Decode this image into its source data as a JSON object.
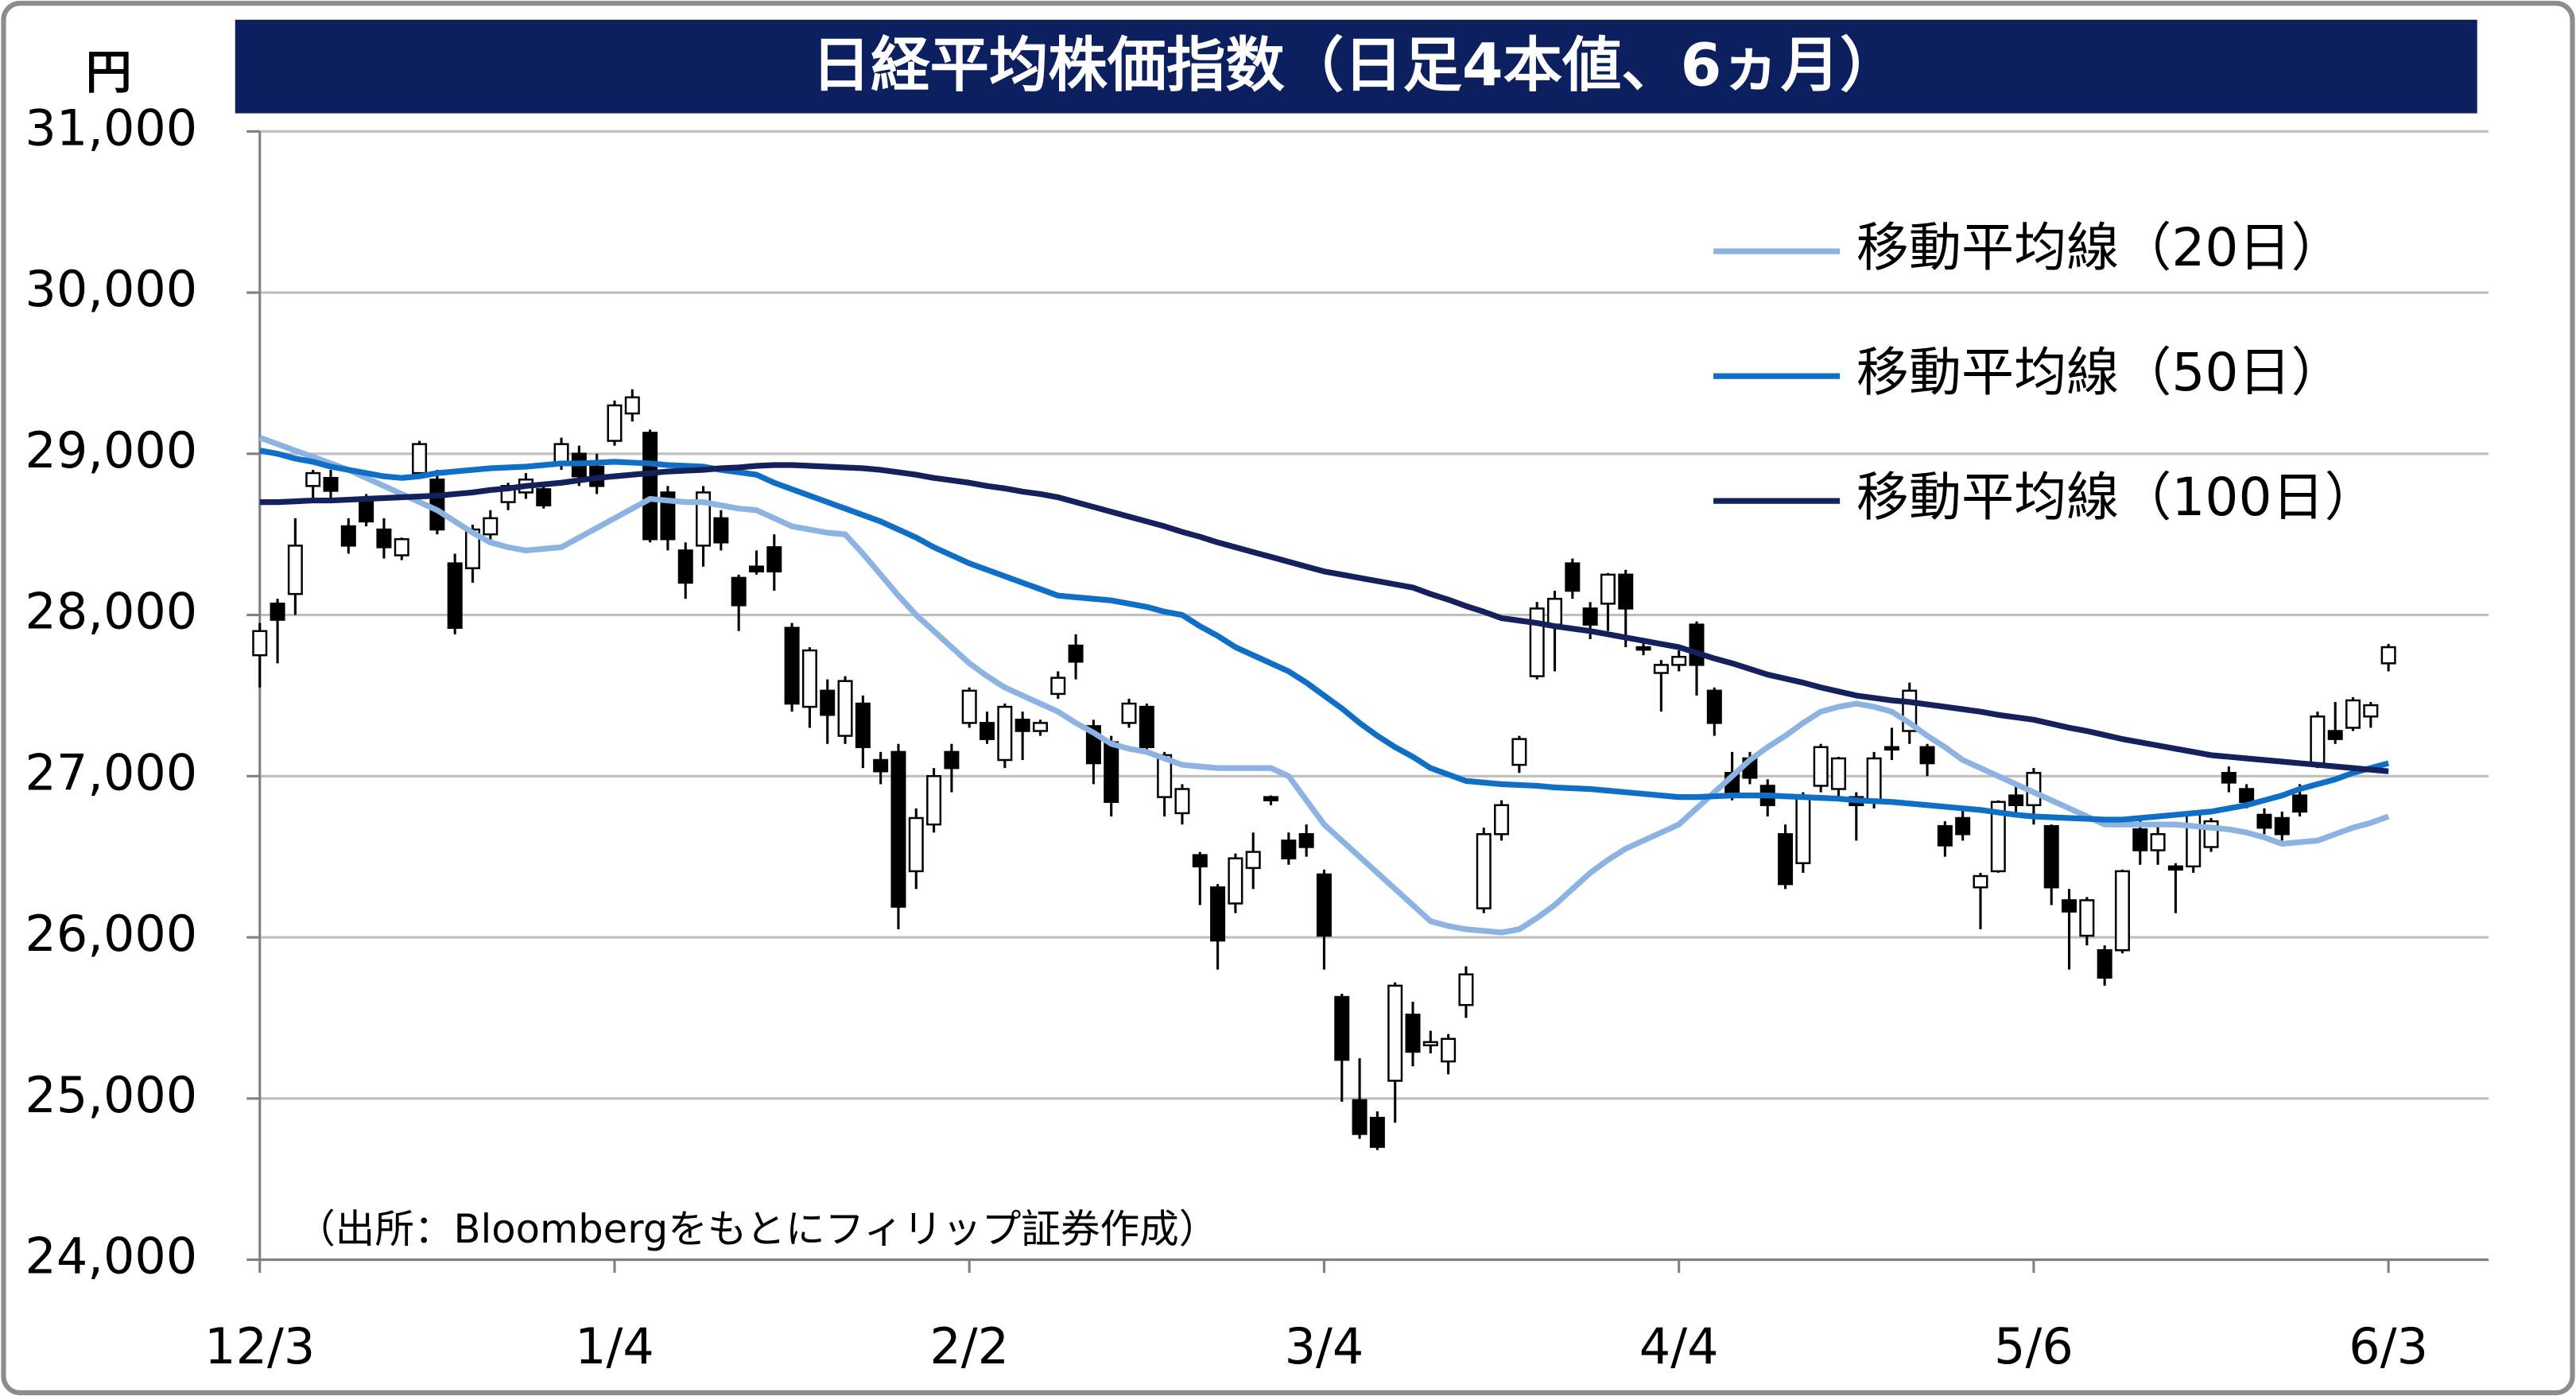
{
  "chart_data": {
    "type": "candlestick",
    "title": "日経平均株価指数（日足4本値、6ヵ月）",
    "unit_label": "円",
    "note": "（出所：Bloombergをもとにフィリップ証券作成）",
    "categories": [
      "12/3",
      null,
      null,
      null,
      null,
      null,
      null,
      null,
      null,
      null,
      null,
      null,
      null,
      null,
      null,
      null,
      null,
      null,
      null,
      null,
      "1/4",
      null,
      null,
      null,
      null,
      null,
      null,
      null,
      null,
      null,
      null,
      null,
      null,
      null,
      null,
      null,
      null,
      null,
      null,
      null,
      "2/2",
      null,
      null,
      null,
      null,
      null,
      null,
      null,
      null,
      null,
      null,
      null,
      null,
      null,
      null,
      null,
      null,
      null,
      null,
      null,
      "3/4",
      null,
      null,
      null,
      null,
      null,
      null,
      null,
      null,
      null,
      null,
      null,
      null,
      null,
      null,
      null,
      null,
      null,
      null,
      null,
      "4/4",
      null,
      null,
      null,
      null,
      null,
      null,
      null,
      null,
      null,
      null,
      null,
      null,
      null,
      null,
      null,
      null,
      null,
      null,
      null,
      "5/6",
      null,
      null,
      null,
      null,
      null,
      null,
      null,
      null,
      null,
      null,
      null,
      null,
      null,
      null,
      null,
      null,
      null,
      null,
      null,
      "6/3"
    ],
    "open": [
      27750,
      28070,
      28130,
      28800,
      28850,
      28550,
      28700,
      28530,
      28370,
      28880,
      28840,
      28320,
      28290,
      28500,
      28700,
      28760,
      28780,
      28940,
      29000,
      28920,
      29080,
      29250,
      29130,
      28760,
      28400,
      28430,
      28600,
      28230,
      28300,
      28420,
      27920,
      27430,
      27530,
      27250,
      27450,
      27100,
      27150,
      26410,
      26700,
      27150,
      27330,
      27330,
      27100,
      27350,
      27280,
      27510,
      27810,
      27310,
      27210,
      27330,
      27430,
      26870,
      26770,
      26510,
      26310,
      26210,
      26430,
      26870,
      26600,
      26640,
      26390,
      25630,
      24990,
      24880,
      25110,
      25520,
      25330,
      25230,
      25580,
      26180,
      26640,
      27070,
      27620,
      27940,
      28320,
      28040,
      28070,
      28250,
      27800,
      27640,
      27690,
      27940,
      27530,
      27020,
      27110,
      26940,
      26640,
      26460,
      26940,
      26920,
      26870,
      26840,
      27180,
      27280,
      27180,
      26690,
      26740,
      26310,
      26410,
      26880,
      26820,
      26690,
      26230,
      26010,
      25920,
      25920,
      26670,
      26540,
      26440,
      26440,
      26560,
      27020,
      26920,
      26760,
      26740,
      26880,
      27080,
      27280,
      27300,
      27370,
      27700
    ],
    "high": [
      27950,
      28100,
      28600,
      28900,
      28900,
      28600,
      28750,
      28600,
      28480,
      29080,
      28900,
      28380,
      28560,
      28650,
      28820,
      28880,
      28820,
      29100,
      29050,
      29000,
      29330,
      29400,
      29150,
      28800,
      28450,
      28800,
      28650,
      28250,
      28400,
      28500,
      27950,
      27800,
      27600,
      27620,
      27500,
      27150,
      27200,
      26800,
      27050,
      27200,
      27550,
      27400,
      27450,
      27400,
      27350,
      27650,
      27880,
      27350,
      27250,
      27480,
      27450,
      27150,
      26950,
      26530,
      26330,
      26520,
      26650,
      26880,
      26650,
      26700,
      26420,
      25650,
      25250,
      24920,
      25720,
      25600,
      25420,
      25400,
      25820,
      26680,
      26850,
      27250,
      28080,
      28150,
      28350,
      28080,
      28260,
      28280,
      27850,
      27720,
      27780,
      27960,
      27550,
      27150,
      27150,
      26980,
      26700,
      26900,
      27200,
      27120,
      26900,
      27150,
      27300,
      27580,
      27200,
      26720,
      26800,
      26400,
      26850,
      26950,
      27050,
      26700,
      26300,
      26250,
      25950,
      26420,
      26750,
      26700,
      26460,
      26780,
      26740,
      27060,
      26950,
      26800,
      26780,
      26950,
      27400,
      27460,
      27490,
      27460,
      27820
    ],
    "low": [
      27550,
      27700,
      28000,
      28700,
      28700,
      28380,
      28550,
      28350,
      28340,
      28850,
      28500,
      27880,
      28200,
      28450,
      28650,
      28720,
      28660,
      28900,
      28800,
      28750,
      29050,
      29200,
      28450,
      28400,
      28100,
      28300,
      28400,
      27900,
      28250,
      28150,
      27400,
      27300,
      27200,
      27200,
      27050,
      26950,
      26050,
      26300,
      26650,
      26900,
      27300,
      27200,
      27050,
      27100,
      27250,
      27480,
      27600,
      26950,
      26750,
      27300,
      27150,
      26750,
      26700,
      26200,
      25800,
      26150,
      26300,
      26820,
      26450,
      26500,
      25800,
      24980,
      24750,
      24680,
      24850,
      25200,
      25280,
      25150,
      25500,
      26150,
      26600,
      27020,
      27600,
      27650,
      28100,
      27850,
      27900,
      27800,
      27750,
      27400,
      27650,
      27500,
      27250,
      26850,
      26950,
      26750,
      26300,
      26400,
      26900,
      26850,
      26600,
      26800,
      27100,
      27200,
      27000,
      26500,
      26600,
      26050,
      26400,
      26750,
      26700,
      26200,
      25800,
      25950,
      25700,
      25900,
      26450,
      26450,
      26150,
      26400,
      26530,
      26900,
      26800,
      26640,
      26600,
      26750,
      27050,
      27200,
      27280,
      27300,
      27650
    ],
    "close": [
      27900,
      27970,
      28430,
      28880,
      28770,
      28430,
      28580,
      28420,
      28470,
      29060,
      28530,
      27920,
      28530,
      28600,
      28800,
      28840,
      28680,
      29060,
      28860,
      28800,
      29300,
      29350,
      28470,
      28470,
      28200,
      28760,
      28450,
      28060,
      28270,
      28270,
      27450,
      27780,
      27380,
      27590,
      27180,
      27030,
      26190,
      26740,
      27000,
      27050,
      27530,
      27230,
      27430,
      27280,
      27330,
      27610,
      27710,
      27080,
      26840,
      27450,
      27180,
      27130,
      26920,
      26440,
      25980,
      26490,
      26530,
      26850,
      26490,
      26560,
      26010,
      25240,
      24780,
      24700,
      25700,
      25290,
      25350,
      25370,
      25770,
      26640,
      26820,
      27230,
      28040,
      28100,
      28150,
      27940,
      28250,
      28040,
      27790,
      27690,
      27740,
      27690,
      27330,
      26870,
      26990,
      26820,
      26330,
      26870,
      27180,
      27110,
      26820,
      27110,
      27170,
      27530,
      27080,
      26570,
      26640,
      26380,
      26840,
      26820,
      27020,
      26310,
      26160,
      26230,
      25750,
      26410,
      26540,
      26640,
      26420,
      26770,
      26720,
      26960,
      26840,
      26680,
      26640,
      26780,
      27370,
      27230,
      27470,
      27440,
      27800
    ],
    "up_color": "#ffffff",
    "down_color": "#000000",
    "series": [
      {
        "name": "移動平均線（20日）",
        "color": "#8db3e2",
        "values": [
          29100,
          29060,
          29020,
          28980,
          28940,
          28900,
          28850,
          28800,
          28750,
          28700,
          28650,
          28580,
          28510,
          28450,
          28420,
          28400,
          28410,
          28420,
          28480,
          28540,
          28600,
          28660,
          28720,
          28710,
          28700,
          28700,
          28680,
          28660,
          28650,
          28600,
          28550,
          28530,
          28510,
          28500,
          28380,
          28250,
          28120,
          28000,
          27900,
          27800,
          27700,
          27620,
          27550,
          27500,
          27450,
          27400,
          27330,
          27270,
          27200,
          27170,
          27150,
          27110,
          27070,
          27060,
          27050,
          27050,
          27050,
          27050,
          27000,
          26850,
          26700,
          26600,
          26500,
          26400,
          26300,
          26200,
          26100,
          26070,
          26050,
          26040,
          26030,
          26050,
          26120,
          26200,
          26300,
          26400,
          26480,
          26550,
          26600,
          26650,
          26700,
          26800,
          26900,
          27000,
          27100,
          27180,
          27250,
          27330,
          27400,
          27430,
          27450,
          27430,
          27400,
          27330,
          27250,
          27180,
          27100,
          27050,
          27000,
          26950,
          26900,
          26850,
          26800,
          26750,
          26700,
          26700,
          26700,
          26700,
          26700,
          26690,
          26680,
          26670,
          26650,
          26620,
          26580,
          26590,
          26600,
          26640,
          26680,
          26710,
          26750
        ]
      },
      {
        "name": "移動平均線（50日）",
        "color": "#0f6fc6",
        "values": [
          29020,
          29000,
          28970,
          28950,
          28920,
          28900,
          28880,
          28860,
          28850,
          28860,
          28880,
          28890,
          28900,
          28910,
          28915,
          28920,
          28930,
          28940,
          28940,
          28945,
          28950,
          28945,
          28940,
          28930,
          28925,
          28920,
          28900,
          28885,
          28870,
          28820,
          28780,
          28740,
          28700,
          28660,
          28620,
          28580,
          28530,
          28480,
          28420,
          28370,
          28320,
          28280,
          28240,
          28200,
          28160,
          28120,
          28110,
          28100,
          28090,
          28070,
          28050,
          28020,
          28000,
          27930,
          27870,
          27800,
          27750,
          27700,
          27650,
          27580,
          27500,
          27420,
          27330,
          27250,
          27180,
          27120,
          27050,
          27010,
          26970,
          26960,
          26950,
          26945,
          26940,
          26930,
          26925,
          26920,
          26910,
          26900,
          26890,
          26880,
          26870,
          26870,
          26875,
          26880,
          26880,
          26880,
          26875,
          26870,
          26865,
          26860,
          26850,
          26845,
          26840,
          26830,
          26820,
          26810,
          26800,
          26790,
          26775,
          26760,
          26750,
          26745,
          26740,
          26735,
          26730,
          26730,
          26740,
          26750,
          26760,
          26770,
          26780,
          26800,
          26820,
          26850,
          26880,
          26920,
          26950,
          26980,
          27020,
          27050,
          27080
        ]
      },
      {
        "name": "移動平均線（100日）",
        "color": "#14215c",
        "values": [
          28700,
          28700,
          28705,
          28710,
          28710,
          28715,
          28720,
          28725,
          28730,
          28735,
          28740,
          28750,
          28760,
          28775,
          28785,
          28800,
          28810,
          28820,
          28835,
          28850,
          28860,
          28870,
          28880,
          28890,
          28895,
          28900,
          28910,
          28915,
          28925,
          28930,
          28930,
          28925,
          28920,
          28915,
          28910,
          28900,
          28885,
          28870,
          28850,
          28835,
          28820,
          28800,
          28785,
          28765,
          28750,
          28730,
          28700,
          28670,
          28640,
          28610,
          28580,
          28550,
          28515,
          28485,
          28450,
          28420,
          28390,
          28360,
          28330,
          28300,
          28270,
          28250,
          28230,
          28210,
          28190,
          28170,
          28130,
          28095,
          28055,
          28020,
          27980,
          27965,
          27950,
          27930,
          27915,
          27900,
          27880,
          27860,
          27840,
          27820,
          27800,
          27765,
          27730,
          27700,
          27665,
          27630,
          27605,
          27580,
          27550,
          27525,
          27500,
          27485,
          27470,
          27460,
          27445,
          27430,
          27415,
          27400,
          27380,
          27365,
          27350,
          27325,
          27300,
          27280,
          27255,
          27230,
          27210,
          27190,
          27170,
          27150,
          27130,
          27120,
          27110,
          27100,
          27090,
          27080,
          27070,
          27060,
          27050,
          27040,
          27030
        ]
      }
    ],
    "ylim": [
      24000,
      31000
    ],
    "yticks": [
      {
        "value": 24000,
        "label": "24,000"
      },
      {
        "value": 25000,
        "label": "25,000"
      },
      {
        "value": 26000,
        "label": "26,000"
      },
      {
        "value": 27000,
        "label": "27,000"
      },
      {
        "value": 28000,
        "label": "28,000"
      },
      {
        "value": 29000,
        "label": "29,000"
      },
      {
        "value": 30000,
        "label": "30,000"
      },
      {
        "value": 31000,
        "label": "31,000"
      }
    ],
    "grid": true,
    "legend": "upper right"
  }
}
